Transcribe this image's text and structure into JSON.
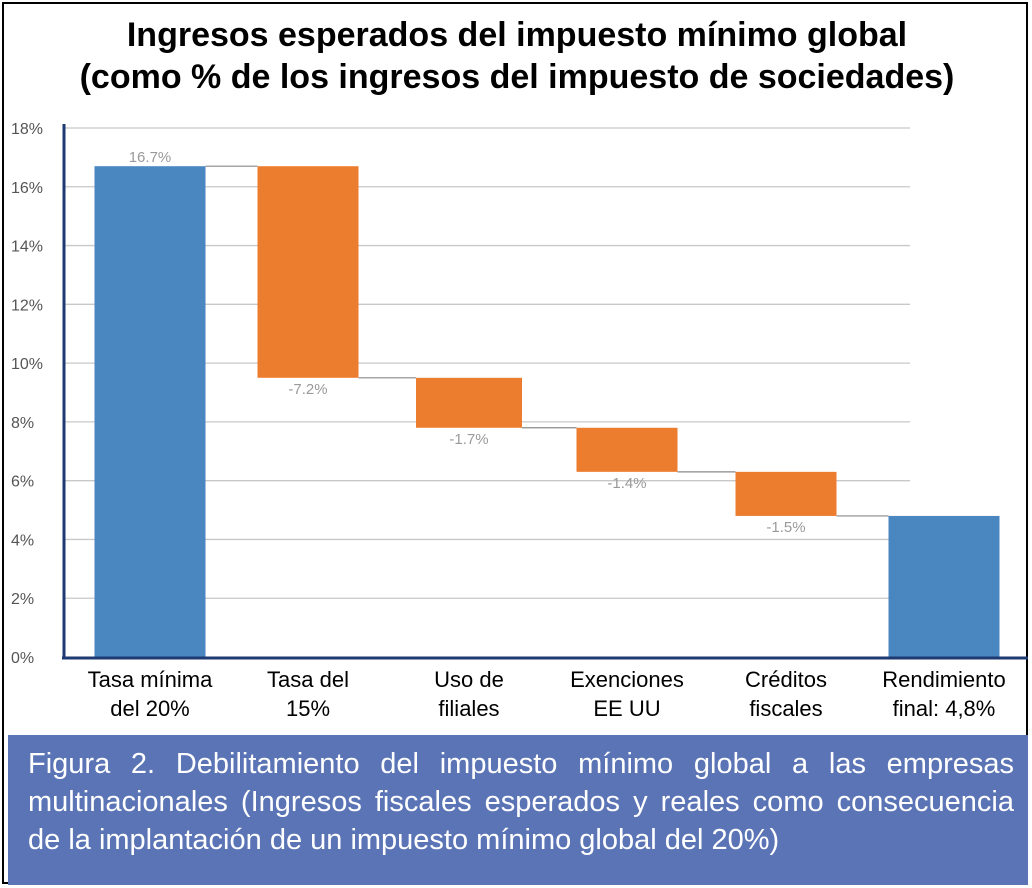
{
  "title_line1": "Ingresos esperados del impuesto mínimo global",
  "title_line2": "(como % de los ingresos del impuesto de sociedades)",
  "caption": "Figura 2. Debilitamiento del impuesto mínimo global a las empresas multinacionales (Ingresos fiscales esperados y reales como consecuencia de la implantación de un impuesto mínimo global del 20%)",
  "colors": {
    "total": "#4a86c0",
    "decrease": "#ed7d2e",
    "grid": "#c8c8c8",
    "axis": "#1d3a72",
    "caption_bg": "#5b74b6"
  },
  "chart_data": {
    "type": "bar",
    "subtype": "waterfall",
    "title": "Ingresos esperados del impuesto mínimo global (como % de los ingresos del impuesto de sociedades)",
    "categories": [
      [
        "Tasa mínima",
        "del 20%"
      ],
      [
        "Tasa del",
        "15%"
      ],
      [
        "Uso de",
        "filiales"
      ],
      [
        "Exenciones",
        "EE UU"
      ],
      [
        "Créditos",
        "fiscales"
      ],
      [
        "Rendimiento",
        "final: 4,8%"
      ]
    ],
    "bars": [
      {
        "kind": "total",
        "start": 0,
        "end": 16.7,
        "label": "16.7%"
      },
      {
        "kind": "decrease",
        "start": 16.7,
        "end": 9.5,
        "label": "-7.2%"
      },
      {
        "kind": "decrease",
        "start": 9.5,
        "end": 7.8,
        "label": "-1.7%"
      },
      {
        "kind": "decrease",
        "start": 7.8,
        "end": 6.3,
        "label": "-1.4%"
      },
      {
        "kind": "decrease",
        "start": 6.3,
        "end": 4.8,
        "label": "-1.5%"
      },
      {
        "kind": "total",
        "start": 0,
        "end": 4.8,
        "label": ""
      }
    ],
    "yticks": [
      "0%",
      "2%",
      "4%",
      "6%",
      "8%",
      "10%",
      "12%",
      "14%",
      "16%",
      "18%"
    ],
    "ylim": [
      0,
      18
    ],
    "grid": true,
    "legend": "none"
  }
}
